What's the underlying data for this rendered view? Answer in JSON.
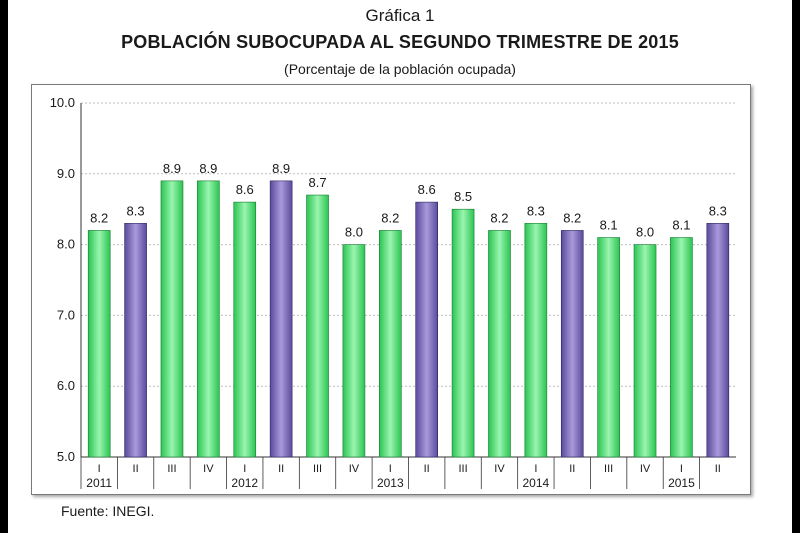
{
  "header": {
    "kicker": "Gráfica 1",
    "title": "POBLACIÓN SUBOCUPADA AL SEGUNDO TRIMESTRE DE 2015",
    "subtitle": "(Porcentaje de la población ocupada)"
  },
  "footer": {
    "source": "Fuente: INEGI."
  },
  "chart_data": {
    "type": "bar",
    "title": "POBLACIÓN SUBOCUPADA AL SEGUNDO TRIMESTRE DE 2015",
    "subtitle": "(Porcentaje de la población ocupada)",
    "xlabel": "",
    "ylabel": "",
    "ylim": [
      5.0,
      10.0
    ],
    "yticks": [
      "5.0",
      "6.0",
      "7.0",
      "8.0",
      "9.0",
      "10.0"
    ],
    "grid": true,
    "categories": [
      "I",
      "II",
      "III",
      "IV",
      "I",
      "II",
      "III",
      "IV",
      "I",
      "II",
      "III",
      "IV",
      "I",
      "II",
      "III",
      "IV",
      "I",
      "II"
    ],
    "years": [
      {
        "label": "2011",
        "index": 0
      },
      {
        "label": "2012",
        "index": 4
      },
      {
        "label": "2013",
        "index": 8
      },
      {
        "label": "2014",
        "index": 12
      },
      {
        "label": "2015",
        "index": 16
      }
    ],
    "values": [
      8.2,
      8.3,
      8.9,
      8.9,
      8.6,
      8.9,
      8.7,
      8.0,
      8.2,
      8.6,
      8.5,
      8.2,
      8.3,
      8.2,
      8.1,
      8.0,
      8.1,
      8.3
    ],
    "value_labels": [
      "8.2",
      "8.3",
      "8.9",
      "8.9",
      "8.6",
      "8.9",
      "8.7",
      "8.0",
      "8.2",
      "8.6",
      "8.5",
      "8.2",
      "8.3",
      "8.2",
      "8.1",
      "8.0",
      "8.1",
      "8.3"
    ],
    "highlight_indices": [
      1,
      5,
      9,
      13,
      17
    ],
    "colors": {
      "bar": "#2bc451",
      "bar_light": "#9af5b0",
      "highlight": "#5a4a9c",
      "highlight_light": "#a99adb",
      "grid": "#bfbfbf",
      "axis": "#333333"
    }
  }
}
